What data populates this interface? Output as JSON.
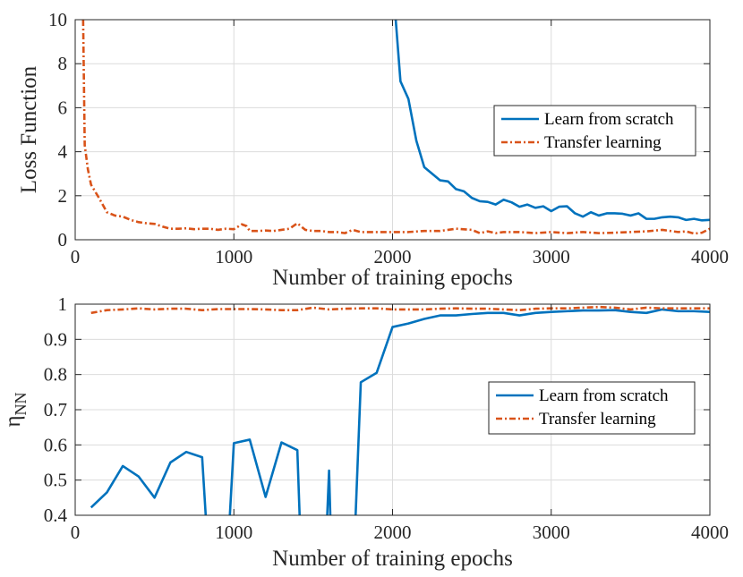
{
  "chart_data": [
    {
      "type": "line",
      "xlabel": "Number of training epochs",
      "ylabel": "Loss Function",
      "xlim": [
        0,
        4000
      ],
      "ylim": [
        0,
        10
      ],
      "xticks": [
        0,
        1000,
        2000,
        3000,
        4000
      ],
      "yticks": [
        0,
        2,
        4,
        6,
        8,
        10
      ],
      "grid": true,
      "legend": "right",
      "series": [
        {
          "name": "Learn from scratch",
          "color": "#0072bd",
          "style": "solid",
          "x": [
            2000,
            2020,
            2050,
            2100,
            2150,
            2200,
            2250,
            2300,
            2350,
            2400,
            2450,
            2500,
            2550,
            2600,
            2650,
            2700,
            2750,
            2800,
            2850,
            2900,
            2950,
            3000,
            3050,
            3100,
            3150,
            3200,
            3250,
            3300,
            3350,
            3400,
            3450,
            3500,
            3550,
            3600,
            3650,
            3700,
            3750,
            3800,
            3850,
            3900,
            3950,
            4000
          ],
          "y": [
            13,
            10,
            7.2,
            6.4,
            4.5,
            3.3,
            3.0,
            2.7,
            2.65,
            2.3,
            2.2,
            1.9,
            1.75,
            1.72,
            1.6,
            1.82,
            1.7,
            1.5,
            1.6,
            1.45,
            1.52,
            1.3,
            1.5,
            1.52,
            1.2,
            1.05,
            1.25,
            1.1,
            1.2,
            1.2,
            1.18,
            1.1,
            1.2,
            0.95,
            0.95,
            1.02,
            1.05,
            1.02,
            0.9,
            0.95,
            0.88,
            0.9
          ]
        },
        {
          "name": "Transfer learning",
          "color": "#d95319",
          "style": "dashdot",
          "x": [
            50,
            60,
            80,
            100,
            150,
            200,
            250,
            300,
            350,
            400,
            450,
            500,
            550,
            600,
            650,
            700,
            750,
            800,
            850,
            900,
            950,
            1000,
            1050,
            1080,
            1100,
            1150,
            1200,
            1250,
            1300,
            1350,
            1400,
            1450,
            1500,
            1550,
            1600,
            1650,
            1700,
            1750,
            1800,
            1850,
            1900,
            1950,
            2000,
            2100,
            2200,
            2300,
            2400,
            2500,
            2550,
            2600,
            2650,
            2700,
            2800,
            2900,
            3000,
            3100,
            3200,
            3300,
            3400,
            3500,
            3600,
            3700,
            3800,
            3850,
            3900,
            3950,
            4000
          ],
          "y": [
            10,
            4.3,
            3.2,
            2.5,
            1.9,
            1.25,
            1.1,
            1.05,
            0.9,
            0.8,
            0.75,
            0.72,
            0.6,
            0.5,
            0.5,
            0.52,
            0.48,
            0.5,
            0.5,
            0.45,
            0.5,
            0.48,
            0.7,
            0.62,
            0.4,
            0.4,
            0.42,
            0.4,
            0.45,
            0.5,
            0.75,
            0.45,
            0.4,
            0.4,
            0.35,
            0.35,
            0.3,
            0.45,
            0.35,
            0.35,
            0.35,
            0.35,
            0.35,
            0.35,
            0.4,
            0.4,
            0.5,
            0.45,
            0.3,
            0.38,
            0.3,
            0.35,
            0.35,
            0.3,
            0.35,
            0.3,
            0.35,
            0.3,
            0.32,
            0.35,
            0.38,
            0.45,
            0.35,
            0.38,
            0.28,
            0.32,
            0.5
          ]
        }
      ]
    },
    {
      "type": "line",
      "xlabel": "Number of training epochs",
      "ylabel": "η",
      "ylabel_sub": "NN",
      "xlim": [
        0,
        4000
      ],
      "ylim": [
        0.4,
        1
      ],
      "xticks": [
        0,
        1000,
        2000,
        3000,
        4000
      ],
      "yticks": [
        0.4,
        0.5,
        0.6,
        0.7,
        0.8,
        0.9,
        1
      ],
      "grid": true,
      "legend": "right",
      "series": [
        {
          "name": "Learn from scratch",
          "color": "#0072bd",
          "style": "solid",
          "x": [
            100,
            200,
            300,
            400,
            500,
            600,
            700,
            800,
            850,
            950,
            1000,
            1100,
            1200,
            1300,
            1400,
            1430,
            1570,
            1600,
            1620,
            1750,
            1800,
            1900,
            2000,
            2100,
            2200,
            2300,
            2400,
            2500,
            2600,
            2700,
            2800,
            2900,
            3000,
            3100,
            3200,
            3300,
            3400,
            3500,
            3600,
            3700,
            3800,
            3900,
            4000
          ],
          "y": [
            0.422,
            0.465,
            0.54,
            0.51,
            0.45,
            0.55,
            0.58,
            0.565,
            0.2,
            0.2,
            0.605,
            0.615,
            0.452,
            0.607,
            0.585,
            0.2,
            0.2,
            0.527,
            0.2,
            0.2,
            0.778,
            0.805,
            0.935,
            0.945,
            0.958,
            0.968,
            0.968,
            0.972,
            0.975,
            0.975,
            0.968,
            0.975,
            0.978,
            0.98,
            0.982,
            0.982,
            0.983,
            0.978,
            0.975,
            0.985,
            0.98,
            0.98,
            0.978
          ]
        },
        {
          "name": "Transfer learning",
          "color": "#d95319",
          "style": "dashdot",
          "x": [
            100,
            200,
            300,
            400,
            500,
            600,
            700,
            800,
            900,
            1000,
            1100,
            1200,
            1300,
            1400,
            1500,
            1600,
            1700,
            1800,
            1900,
            2000,
            2100,
            2200,
            2300,
            2400,
            2500,
            2600,
            2700,
            2800,
            2900,
            3000,
            3100,
            3200,
            3300,
            3400,
            3500,
            3600,
            3700,
            3800,
            3900,
            4000
          ],
          "y": [
            0.975,
            0.983,
            0.985,
            0.988,
            0.985,
            0.987,
            0.987,
            0.983,
            0.986,
            0.986,
            0.986,
            0.985,
            0.983,
            0.983,
            0.99,
            0.985,
            0.987,
            0.988,
            0.988,
            0.985,
            0.985,
            0.985,
            0.987,
            0.988,
            0.987,
            0.987,
            0.985,
            0.983,
            0.987,
            0.988,
            0.988,
            0.99,
            0.992,
            0.99,
            0.985,
            0.99,
            0.988,
            0.988,
            0.988,
            0.988
          ]
        }
      ]
    }
  ]
}
